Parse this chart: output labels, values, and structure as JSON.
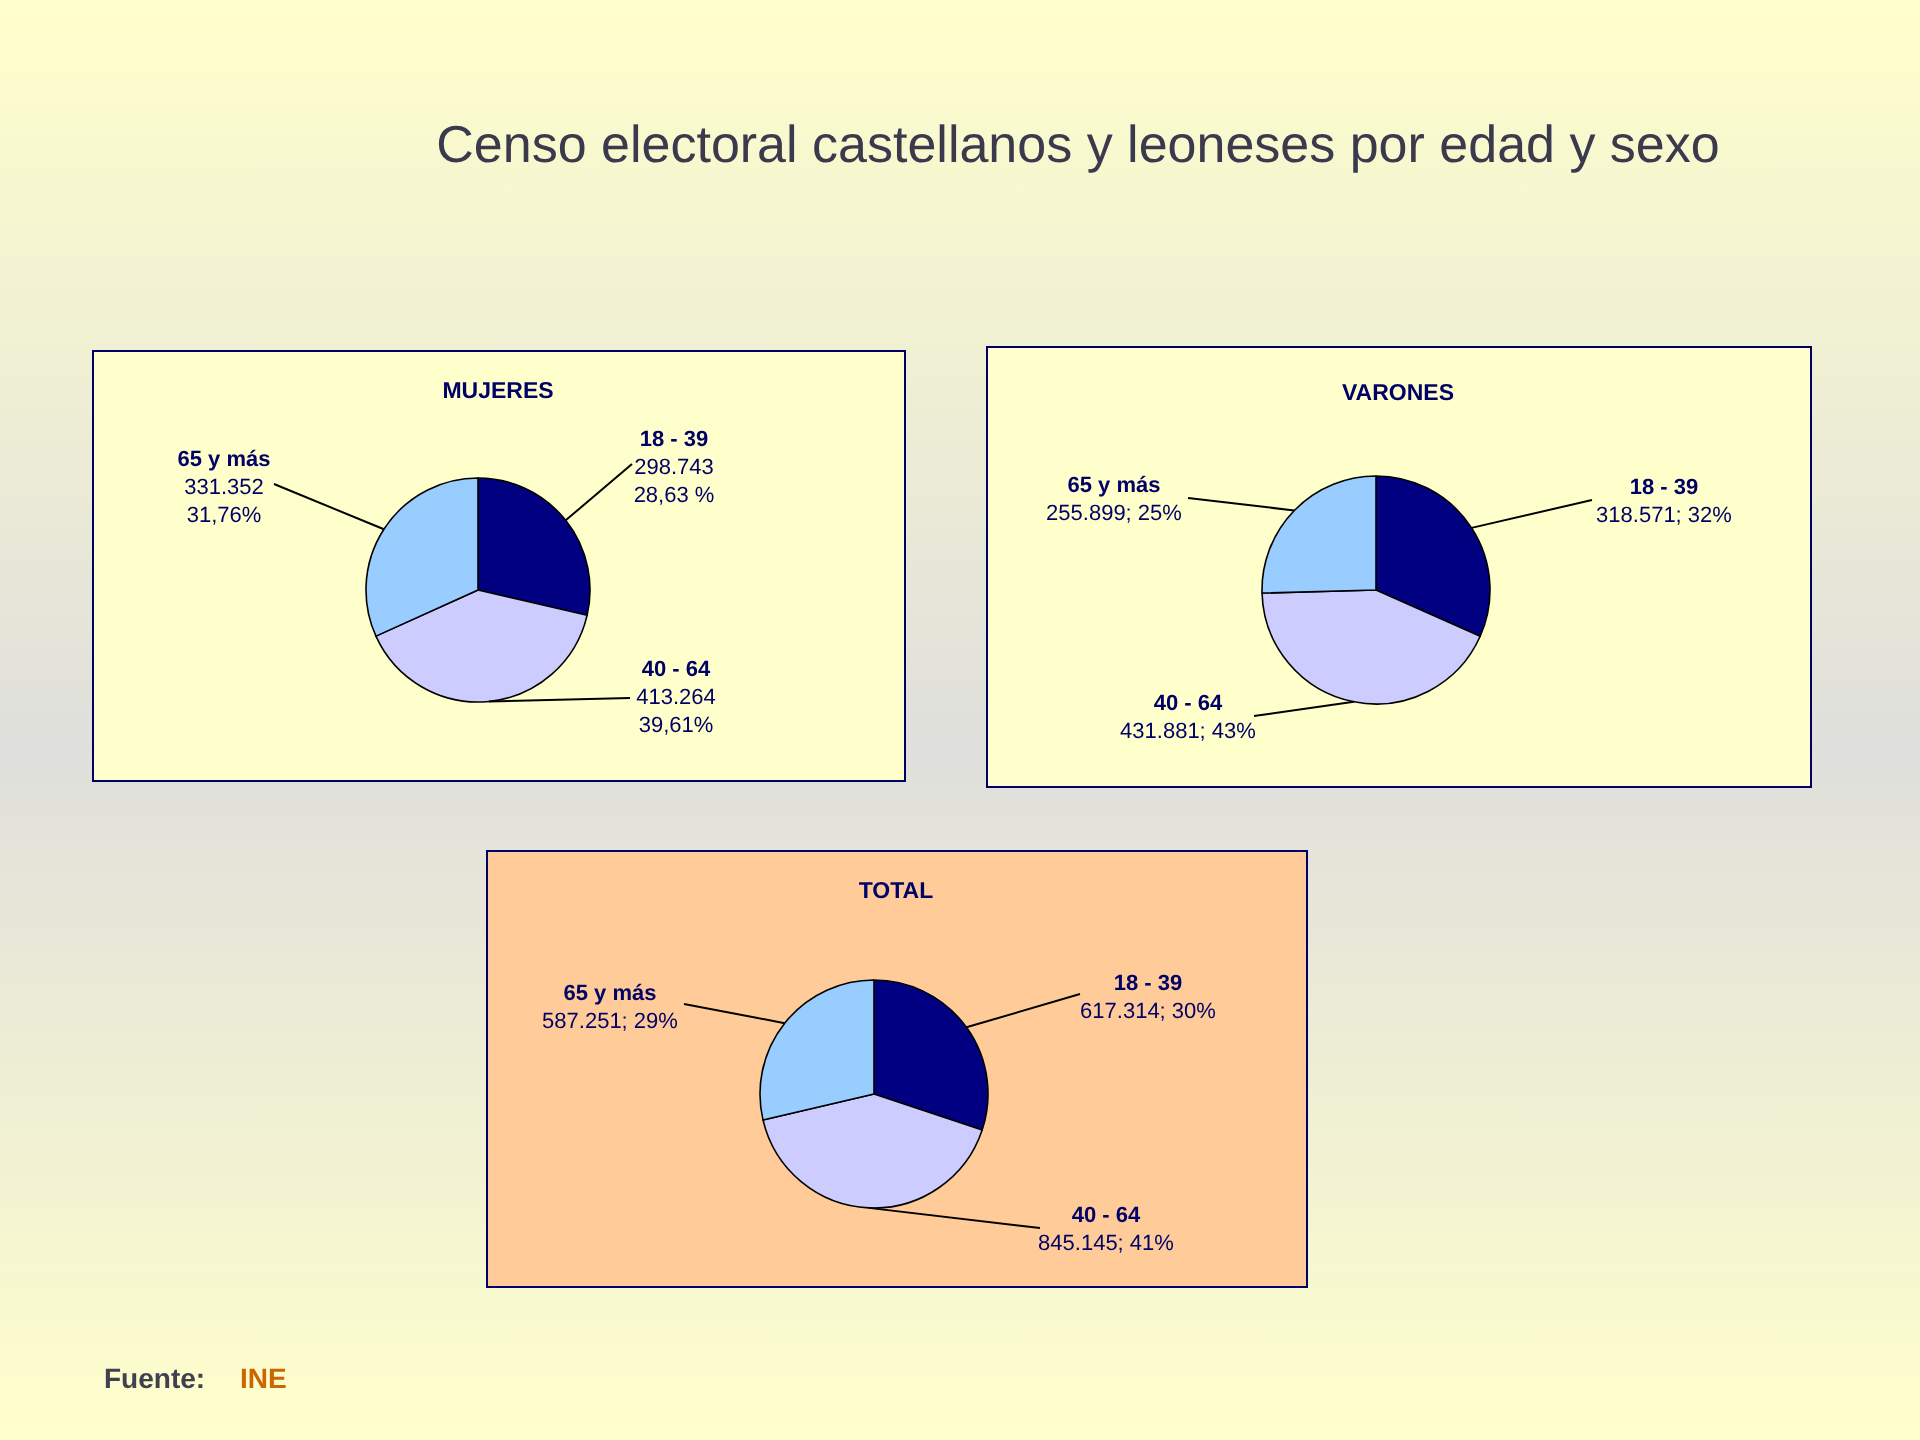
{
  "chart_data": [
    {
      "type": "other",
      "title": "Censo electoral castellanos y leoneses por edad y sexo",
      "annotations": [
        "Fuente:",
        "INE"
      ]
    },
    {
      "type": "pie",
      "title": "MUJERES",
      "categories": [
        "18 - 39",
        "40 - 64",
        "65 y más"
      ],
      "values": [
        298743,
        413264,
        331352
      ],
      "colors": [
        "#000080",
        "#ccccff",
        "#99ccff"
      ],
      "value_labels": [
        "298.743\n28,63 %",
        "413.264\n39,61%",
        "331.352\n31,76%"
      ]
    },
    {
      "type": "pie",
      "title": "VARONES",
      "categories": [
        "18 - 39",
        "40 - 64",
        "65 y más"
      ],
      "values": [
        318571,
        431881,
        255899
      ],
      "colors": [
        "#000080",
        "#ccccff",
        "#99ccff"
      ],
      "value_labels": [
        "318.571; 32%",
        "431.881; 43%",
        "255.899; 25%"
      ]
    },
    {
      "type": "pie",
      "title": "TOTAL",
      "categories": [
        "18 - 39",
        "40 - 64",
        "65 y más"
      ],
      "values": [
        617314,
        845145,
        587251
      ],
      "colors": [
        "#000080",
        "#ccccff",
        "#99ccff"
      ],
      "value_labels": [
        "617.314; 30%",
        "845.145; 41%",
        "587.251; 29%"
      ]
    }
  ]
}
